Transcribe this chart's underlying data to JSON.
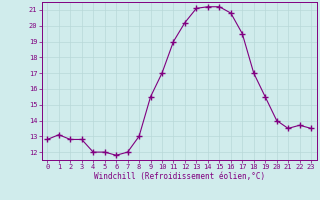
{
  "hours": [
    0,
    1,
    2,
    3,
    4,
    5,
    6,
    7,
    8,
    9,
    10,
    11,
    12,
    13,
    14,
    15,
    16,
    17,
    18,
    19,
    20,
    21,
    22,
    23
  ],
  "values": [
    12.8,
    13.1,
    12.8,
    12.8,
    12.0,
    12.0,
    11.8,
    12.0,
    13.0,
    15.5,
    17.0,
    19.0,
    20.2,
    21.1,
    21.2,
    21.2,
    20.8,
    19.5,
    17.0,
    15.5,
    14.0,
    13.5,
    13.7,
    13.5
  ],
  "line_color": "#800080",
  "marker": "+",
  "marker_size": 4,
  "bg_color": "#d0ecec",
  "grid_color": "#b8d8d8",
  "xlabel": "Windchill (Refroidissement éolien,°C)",
  "xlabel_color": "#800080",
  "tick_color": "#800080",
  "ylim": [
    11.5,
    21.5
  ],
  "xlim": [
    -0.5,
    23.5
  ],
  "yticks": [
    12,
    13,
    14,
    15,
    16,
    17,
    18,
    19,
    20,
    21
  ],
  "xticks": [
    0,
    1,
    2,
    3,
    4,
    5,
    6,
    7,
    8,
    9,
    10,
    11,
    12,
    13,
    14,
    15,
    16,
    17,
    18,
    19,
    20,
    21,
    22,
    23
  ],
  "spine_color": "#800080",
  "font_size_ticks": 5.0,
  "font_size_xlabel": 5.5,
  "linewidth": 0.8
}
